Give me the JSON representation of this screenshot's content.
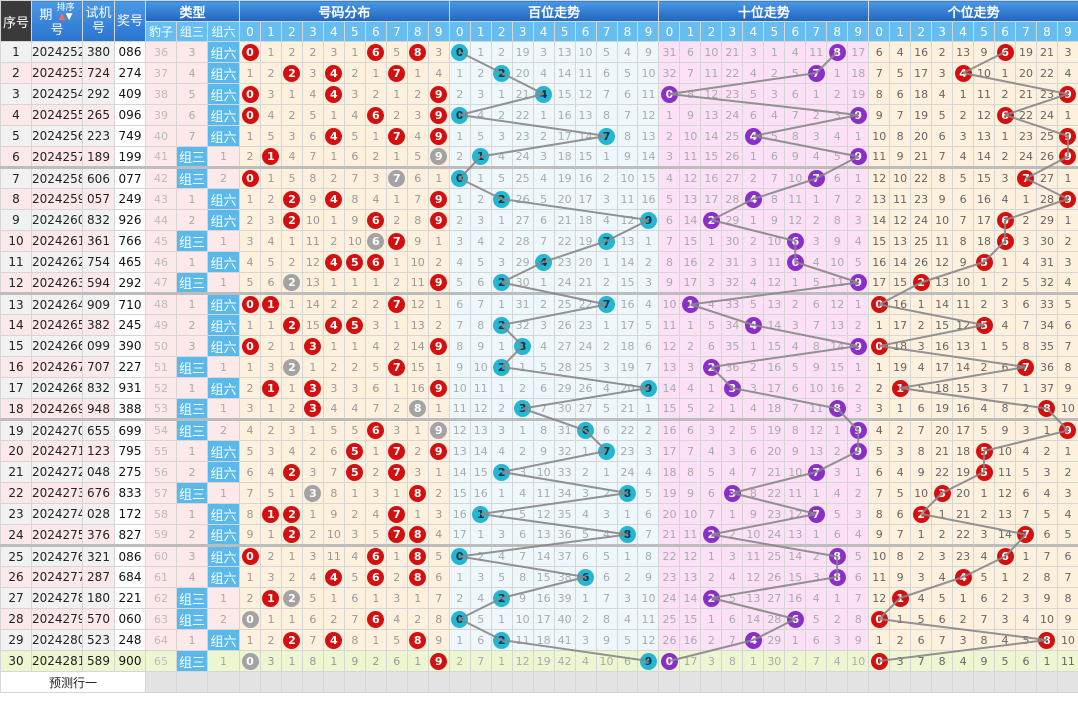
{
  "header": {
    "seq": "序号",
    "period_a": "期",
    "period_b": "号",
    "sort_label": "排序",
    "test_a": "试机",
    "test_b": "号",
    "prize": "奖号",
    "type_group": "类型",
    "type_cols": [
      "豹子",
      "组三",
      "组六"
    ],
    "sections": [
      "号码分布",
      "百位走势",
      "十位走势",
      "个位走势"
    ],
    "digits": [
      "0",
      "1",
      "2",
      "3",
      "4",
      "5",
      "6",
      "7",
      "8",
      "9"
    ]
  },
  "type_labels": {
    "zusan": "组三",
    "zuliu": "组六"
  },
  "first_row_display": {
    "type": [
      36,
      3,
      "组六"
    ],
    "distribution": [
      0,
      1,
      2,
      2,
      3,
      1,
      6,
      5,
      8,
      3
    ],
    "hundreds": [
      0,
      1,
      2,
      19,
      3,
      13,
      10,
      5,
      4,
      9
    ],
    "tens": [
      31,
      6,
      10,
      21,
      3,
      1,
      4,
      11,
      8,
      17
    ],
    "units": [
      6,
      4,
      16,
      2,
      13,
      9,
      6,
      19,
      21,
      3
    ]
  },
  "colors": {
    "dist_ball": "#d40f0f",
    "repeat_ball": "#a3a3a3",
    "hundreds_ball": "#23b7d3",
    "tens_ball": "#8a2ec8",
    "units_ball": "#d40f0f",
    "line": "#888888"
  },
  "rows": [
    {
      "seq": "1",
      "period": "2024252",
      "test": "380",
      "prize": "086"
    },
    {
      "seq": "2",
      "period": "2024253",
      "test": "724",
      "prize": "274"
    },
    {
      "seq": "3",
      "period": "2024254",
      "test": "292",
      "prize": "409"
    },
    {
      "seq": "4",
      "period": "2024255",
      "test": "265",
      "prize": "096"
    },
    {
      "seq": "5",
      "period": "2024256",
      "test": "223",
      "prize": "749"
    },
    {
      "seq": "6",
      "period": "2024257",
      "test": "189",
      "prize": "199"
    },
    {
      "seq": "7",
      "period": "2024258",
      "test": "606",
      "prize": "077"
    },
    {
      "seq": "8",
      "period": "2024259",
      "test": "057",
      "prize": "249"
    },
    {
      "seq": "9",
      "period": "2024260",
      "test": "832",
      "prize": "926"
    },
    {
      "seq": "10",
      "period": "2024261",
      "test": "361",
      "prize": "766"
    },
    {
      "seq": "11",
      "period": "2024262",
      "test": "754",
      "prize": "465"
    },
    {
      "seq": "12",
      "period": "2024263",
      "test": "594",
      "prize": "292"
    },
    {
      "seq": "13",
      "period": "2024264",
      "test": "909",
      "prize": "710"
    },
    {
      "seq": "14",
      "period": "2024265",
      "test": "382",
      "prize": "245"
    },
    {
      "seq": "15",
      "period": "2024266",
      "test": "099",
      "prize": "390"
    },
    {
      "seq": "16",
      "period": "2024267",
      "test": "707",
      "prize": "227"
    },
    {
      "seq": "17",
      "period": "2024268",
      "test": "832",
      "prize": "931"
    },
    {
      "seq": "18",
      "period": "2024269",
      "test": "948",
      "prize": "388"
    },
    {
      "seq": "19",
      "period": "2024270",
      "test": "655",
      "prize": "699"
    },
    {
      "seq": "20",
      "period": "2024271",
      "test": "123",
      "prize": "795"
    },
    {
      "seq": "21",
      "period": "2024272",
      "test": "048",
      "prize": "275"
    },
    {
      "seq": "22",
      "period": "2024273",
      "test": "676",
      "prize": "833"
    },
    {
      "seq": "23",
      "period": "2024274",
      "test": "028",
      "prize": "172"
    },
    {
      "seq": "24",
      "period": "2024275",
      "test": "376",
      "prize": "827"
    },
    {
      "seq": "25",
      "period": "2024276",
      "test": "321",
      "prize": "086"
    },
    {
      "seq": "26",
      "period": "2024277",
      "test": "287",
      "prize": "684"
    },
    {
      "seq": "27",
      "period": "2024278",
      "test": "180",
      "prize": "221"
    },
    {
      "seq": "28",
      "period": "2024279",
      "test": "570",
      "prize": "060"
    },
    {
      "seq": "29",
      "period": "2024280",
      "test": "523",
      "prize": "248"
    },
    {
      "seq": "30",
      "period": "2024281",
      "test": "589",
      "prize": "900"
    }
  ],
  "predict_label": "预测行一"
}
